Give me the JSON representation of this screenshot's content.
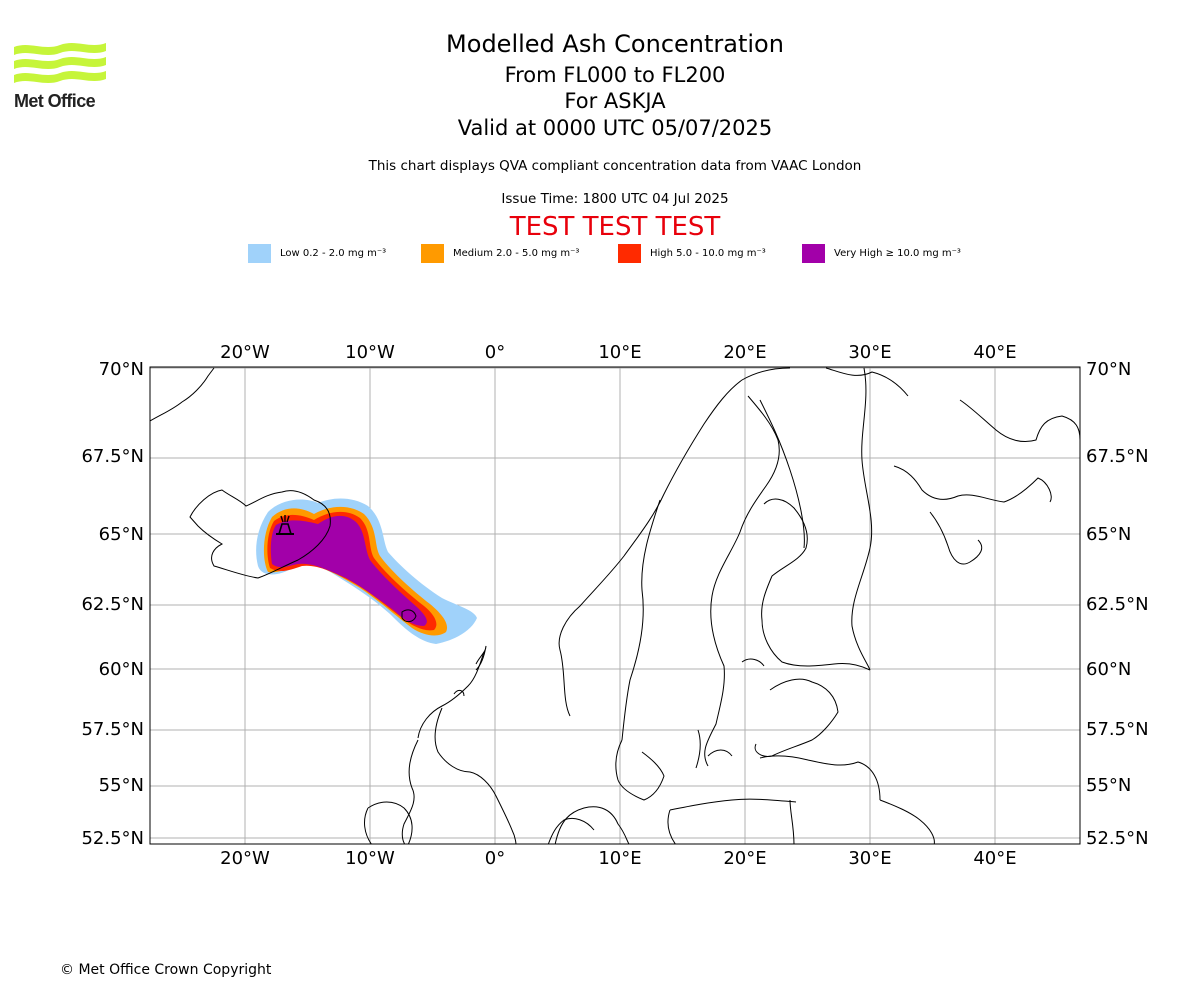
{
  "logo": {
    "text": "Met Office",
    "icon": "met-office-waves-logo",
    "color": "#c6f53a"
  },
  "header": {
    "title": "Modelled Ash Concentration",
    "subtitle_levels": "From FL000 to FL200",
    "subtitle_volcano": "For ASKJA",
    "subtitle_valid": "Valid at 0000 UTC 05/07/2025",
    "note": "This chart displays QVA compliant concentration data from VAAC London",
    "issue_time": "Issue Time: 1800 UTC 04 Jul 2025",
    "test_banner": "TEST TEST TEST"
  },
  "legend": [
    {
      "label": "Low 0.2 - 2.0 mg m⁻³",
      "color": "#a0d2fa"
    },
    {
      "label": "Medium 2.0 - 5.0 mg m⁻³",
      "color": "#ff9a00"
    },
    {
      "label": "High 5.0 - 10.0 mg m⁻³",
      "color": "#ff2a00"
    },
    {
      "label": "Very High  ≥  10.0 mg m⁻³",
      "color": "#a200a9"
    }
  ],
  "map": {
    "lon_ticks": [
      "20°W",
      "10°W",
      "0°",
      "10°E",
      "20°E",
      "30°E",
      "40°E"
    ],
    "lat_ticks": [
      "70°N",
      "67.5°N",
      "65°N",
      "62.5°N",
      "60°N",
      "57.5°N",
      "55°N",
      "52.5°N"
    ],
    "lon_range": [
      -27.5,
      46.5
    ],
    "lat_range": [
      52.3,
      70
    ],
    "gridlines": true,
    "volcano_marker": "volcano-icon"
  },
  "footer": {
    "copyright": "© Met Office Crown Copyright"
  }
}
